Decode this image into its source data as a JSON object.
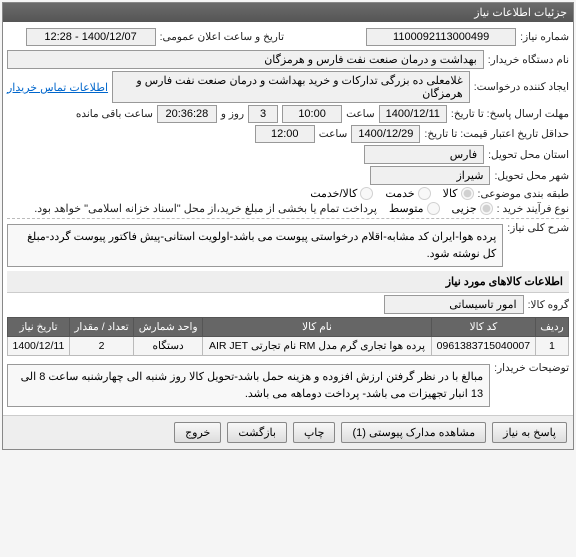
{
  "header": {
    "title": "جزئیات اطلاعات نیاز"
  },
  "need_number": {
    "label": "شماره نیاز:",
    "value": "1100092113000499"
  },
  "announce_datetime": {
    "label": "تاریخ و ساعت اعلان عمومی:",
    "value": "1400/12/07 - 12:28"
  },
  "buyer_org": {
    "label": "نام دستگاه خریدار:",
    "value": "بهداشت و درمان صنعت نفت فارس و هرمزگان"
  },
  "requester": {
    "label": "ایجاد کننده درخواست:",
    "value": "غلامعلی ده بزرگی تدارکات و خرید بهداشت و درمان صنعت نفت فارس و هرمزگان",
    "contact_link": "اطلاعات تماس خریدار"
  },
  "response_deadline": {
    "label": "مهلت ارسال پاسخ: تا تاریخ:",
    "date": "1400/12/11",
    "time_label": "ساعت",
    "time": "10:00",
    "days": "3",
    "days_label": "روز و",
    "remaining": "20:36:28",
    "remaining_label": "ساعت باقی مانده"
  },
  "price_validity": {
    "label": "حداقل تاریخ اعتبار قیمت: تا تاریخ:",
    "date": "1400/12/29",
    "time_label": "ساعت",
    "time": "12:00"
  },
  "province": {
    "label": "استان محل تحویل:",
    "value": "فارس"
  },
  "city": {
    "label": "شهر محل تحویل:",
    "value": "شیراز"
  },
  "category": {
    "label": "طبقه بندی موضوعی:",
    "options": [
      {
        "label": "کالا",
        "value": "goods",
        "checked": true
      },
      {
        "label": "خدمت",
        "value": "service",
        "checked": false
      },
      {
        "label": "کالا/خدمت",
        "value": "both",
        "checked": false
      }
    ]
  },
  "process": {
    "label": "نوع فرآیند خرید :",
    "options": [
      {
        "label": "جزیی",
        "value": "partial",
        "checked": true
      },
      {
        "label": "متوسط",
        "value": "medium",
        "checked": false
      }
    ],
    "note": "پرداخت تمام یا بخشی از مبلغ خرید،از محل \"اسناد خزانه اسلامی\" خواهد بود."
  },
  "general_desc": {
    "label": "شرح کلی نیاز:",
    "text": "پرده هوا-ایران کد مشابه-اقلام درخواستی پیوست می باشد-اولویت استانی-پیش فاکتور پیوست گردد-مبلغ کل نوشته شود."
  },
  "items_header": "اطلاعات کالاهای مورد نیاز",
  "group": {
    "label": "گروه کالا:",
    "value": "امور تاسیساتی"
  },
  "table": {
    "columns": [
      "ردیف",
      "کد کالا",
      "نام کالا",
      "واحد شمارش",
      "تعداد / مقدار",
      "تاریخ نیاز"
    ],
    "rows": [
      [
        "1",
        "0961383715040007",
        "پرده هوا تجاری گرم مدل RM نام تجارتی AIR JET",
        "دستگاه",
        "2",
        "1400/12/11"
      ]
    ]
  },
  "buyer_notes": {
    "label": "توضیحات خریدار:",
    "text": "مبالغ با در نظر گرفتن ارزش افزوده و هزینه حمل باشد-تحویل کالا روز شنبه الی چهارشنبه ساعت 8 الی 13 انبار تجهیزات می باشد- پرداخت دوماهه می باشد."
  },
  "buttons": {
    "respond": "پاسخ به نیاز",
    "attachments": "مشاهده مدارک پیوستی (1)",
    "print": "چاپ",
    "back": "بازگشت",
    "exit": "خروج"
  }
}
